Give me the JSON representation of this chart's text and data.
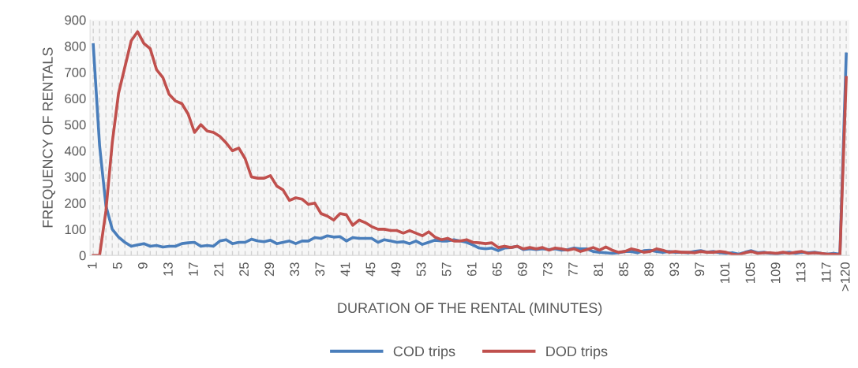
{
  "chart_data": {
    "type": "line",
    "xlabel": "DURATION OF THE RENTAL (MINUTES)",
    "ylabel": "FREQUENCY OF RENTALS",
    "categories": [
      "1",
      null,
      null,
      null,
      "5",
      null,
      null,
      null,
      "9",
      null,
      null,
      null,
      "13",
      null,
      null,
      null,
      "17",
      null,
      null,
      null,
      "21",
      null,
      null,
      null,
      "25",
      null,
      null,
      null,
      "29",
      null,
      null,
      null,
      "33",
      null,
      null,
      null,
      "37",
      null,
      null,
      null,
      "41",
      null,
      null,
      null,
      "45",
      null,
      null,
      null,
      "49",
      null,
      null,
      null,
      "53",
      null,
      null,
      null,
      "57",
      null,
      null,
      null,
      "61",
      null,
      null,
      null,
      "65",
      null,
      null,
      null,
      "69",
      null,
      null,
      null,
      "73",
      null,
      null,
      null,
      "77",
      null,
      null,
      null,
      "81",
      null,
      null,
      null,
      "85",
      null,
      null,
      null,
      "89",
      null,
      null,
      null,
      "93",
      null,
      null,
      null,
      "97",
      null,
      null,
      null,
      "101",
      null,
      null,
      null,
      "105",
      null,
      null,
      null,
      "109",
      null,
      null,
      null,
      "113",
      null,
      null,
      null,
      "117",
      null,
      null,
      ">120"
    ],
    "series": [
      {
        "name": "COD trips",
        "color": "#4a7ebb",
        "values": [
          805,
          420,
          190,
          100,
          70,
          50,
          35,
          40,
          45,
          35,
          38,
          32,
          35,
          35,
          45,
          48,
          50,
          35,
          38,
          35,
          55,
          60,
          45,
          50,
          50,
          62,
          55,
          52,
          58,
          45,
          50,
          55,
          45,
          55,
          55,
          68,
          65,
          75,
          70,
          72,
          55,
          68,
          65,
          65,
          65,
          50,
          60,
          55,
          50,
          52,
          45,
          55,
          42,
          50,
          58,
          55,
          55,
          60,
          55,
          50,
          40,
          28,
          25,
          28,
          18,
          28,
          30,
          35,
          22,
          25,
          22,
          25,
          22,
          25,
          20,
          22,
          28,
          25,
          25,
          15,
          12,
          10,
          8,
          10,
          15,
          15,
          10,
          18,
          20,
          15,
          12,
          15,
          12,
          12,
          10,
          15,
          18,
          12,
          15,
          10,
          8,
          10,
          5,
          12,
          18,
          10,
          12,
          8,
          5,
          10,
          12,
          8,
          12,
          10,
          12,
          8,
          5,
          8,
          5,
          770
        ]
      },
      {
        "name": "DOD trips",
        "color": "#c0504d",
        "values": [
          0,
          0,
          170,
          430,
          620,
          720,
          820,
          855,
          810,
          790,
          710,
          680,
          615,
          590,
          580,
          540,
          470,
          500,
          475,
          470,
          455,
          430,
          400,
          410,
          370,
          300,
          295,
          295,
          305,
          265,
          250,
          210,
          220,
          215,
          195,
          200,
          160,
          150,
          135,
          160,
          155,
          115,
          135,
          125,
          110,
          100,
          100,
          95,
          95,
          85,
          95,
          85,
          75,
          90,
          70,
          60,
          65,
          55,
          55,
          60,
          50,
          48,
          45,
          48,
          30,
          35,
          30,
          35,
          25,
          30,
          25,
          30,
          20,
          28,
          25,
          20,
          25,
          15,
          22,
          30,
          20,
          32,
          20,
          12,
          15,
          25,
          20,
          12,
          15,
          25,
          20,
          12,
          15,
          12,
          12,
          10,
          15,
          12,
          12,
          15,
          12,
          5,
          2,
          10,
          15,
          8,
          10,
          10,
          8,
          12,
          8,
          12,
          15,
          8,
          10,
          8,
          5,
          5,
          2,
          680
        ]
      }
    ],
    "ylim": [
      0,
      900
    ],
    "yticks": [
      0,
      100,
      200,
      300,
      400,
      500,
      600,
      700,
      800,
      900
    ],
    "grid": "x",
    "legend": "bottom",
    "marker": "none",
    "line_style": "solid"
  }
}
